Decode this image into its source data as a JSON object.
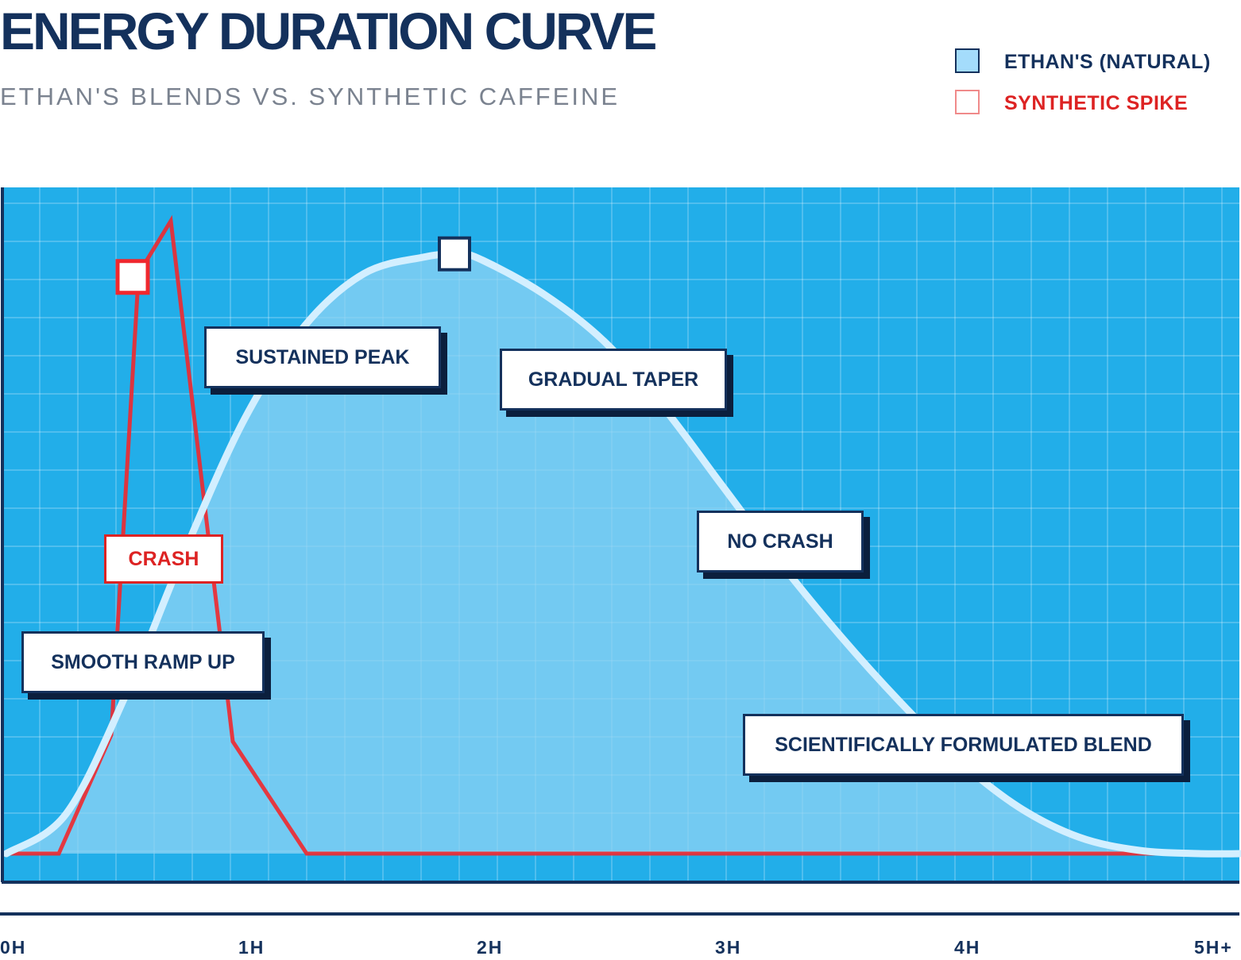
{
  "header": {
    "title": "ENERGY DURATION CURVE",
    "subtitle": "ETHAN'S BLENDS VS. SYNTHETIC CAFFEINE"
  },
  "legend": {
    "natural": "ETHAN'S (NATURAL)",
    "synthetic": "SYNTHETIC SPIKE"
  },
  "colors": {
    "background_plot": "#22aee9",
    "natural_fill": "#8fd3f4",
    "natural_line": "#d3efff",
    "synthetic_line": "#f0282e",
    "navy": "#14315c"
  },
  "callouts": {
    "sustained_peak": "SUSTAINED PEAK",
    "gradual_taper": "GRADUAL TAPER",
    "no_crash": "NO CRASH",
    "crash": "CRASH",
    "smooth_ramp_up": "SMOOTH RAMP UP",
    "scientifically_formulated": "SCIENTIFICALLY FORMULATED BLEND"
  },
  "chart_data": {
    "type": "area",
    "title": "ENERGY DURATION CURVE",
    "subtitle": "ETHAN'S BLENDS VS. SYNTHETIC CAFFEINE",
    "x_tick_labels": [
      "0H",
      "1H",
      "2H",
      "3H",
      "4H",
      "5H+"
    ],
    "xlim": [
      0,
      5.2
    ],
    "ylim": [
      0,
      100
    ],
    "grid": true,
    "legend_position": "top-right",
    "series": [
      {
        "name": "ETHAN'S (NATURAL)",
        "style": "smooth-area",
        "x": [
          0,
          0.25,
          0.5,
          0.75,
          1.0,
          1.25,
          1.5,
          1.75,
          1.9,
          2.0,
          2.25,
          2.5,
          2.75,
          3.0,
          3.25,
          3.5,
          3.75,
          4.0,
          4.25,
          4.5,
          4.75,
          5.0,
          5.2
        ],
        "values": [
          0,
          6,
          24,
          46,
          66,
          80,
          88,
          90.5,
          91,
          90,
          85,
          78,
          68,
          56,
          44,
          33,
          23,
          14,
          7,
          2.5,
          0.5,
          0,
          0
        ],
        "marker": {
          "x": 1.88,
          "y": 91
        }
      },
      {
        "name": "SYNTHETIC SPIKE",
        "style": "line",
        "x": [
          0,
          0.22,
          0.44,
          0.55,
          0.58,
          0.69,
          0.95,
          1.26,
          5.2
        ],
        "values": [
          0,
          0,
          18,
          85,
          89.5,
          96,
          17,
          0,
          0
        ],
        "marker": {
          "x": 0.53,
          "y": 87.5
        }
      }
    ]
  }
}
